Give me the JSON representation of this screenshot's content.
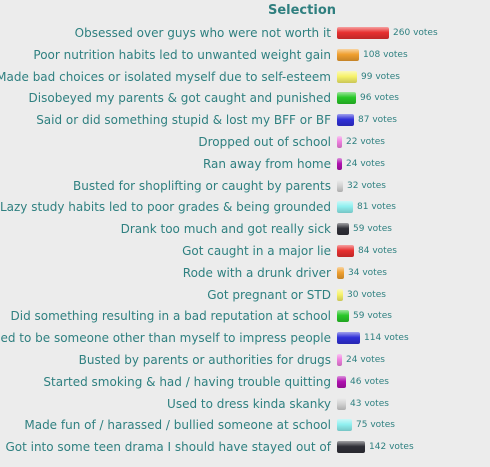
{
  "poll": {
    "header": "Selection",
    "votes_suffix": "votes",
    "rows": [
      {
        "label": "Obsessed over guys who were not worth it",
        "votes": 260,
        "color": "#e83030"
      },
      {
        "label": "Poor nutrition habits led to unwanted weight gain",
        "votes": 108,
        "color": "#f0a030"
      },
      {
        "label": "Made bad choices or isolated myself due to self-esteem",
        "votes": 99,
        "color": "#f6f26a"
      },
      {
        "label": "Disobeyed my parents & got caught and punished",
        "votes": 96,
        "color": "#28c828"
      },
      {
        "label": "Said or did something stupid & lost my BFF or BF",
        "votes": 87,
        "color": "#3030d8"
      },
      {
        "label": "Dropped out of school",
        "votes": 22,
        "color": "#f080e0"
      },
      {
        "label": "Ran away from home",
        "votes": 24,
        "color": "#b010b0"
      },
      {
        "label": "Busted for shoplifting or caught by parents",
        "votes": 32,
        "color": "#d4d4d4"
      },
      {
        "label": "Lazy study habits led to poor grades & being grounded",
        "votes": 81,
        "color": "#90f0f0"
      },
      {
        "label": "Drank too much and got really sick",
        "votes": 59,
        "color": "#303038"
      },
      {
        "label": "Got caught in a major lie",
        "votes": 84,
        "color": "#e83030"
      },
      {
        "label": "Rode with a drunk driver",
        "votes": 34,
        "color": "#f0a030"
      },
      {
        "label": "Got pregnant or STD",
        "votes": 30,
        "color": "#f6f26a"
      },
      {
        "label": "Did something resulting in a bad reputation at school",
        "votes": 59,
        "color": "#28c828"
      },
      {
        "label": "Tried to be someone other than myself to impress people",
        "votes": 114,
        "color": "#3030d8"
      },
      {
        "label": "Busted by parents or authorities for drugs",
        "votes": 24,
        "color": "#f080e0"
      },
      {
        "label": "Started smoking & had / having trouble quitting",
        "votes": 46,
        "color": "#b010b0"
      },
      {
        "label": "Used to dress kinda skanky",
        "votes": 43,
        "color": "#d4d4d4"
      },
      {
        "label": "Made fun of / harassed / bullied someone at school",
        "votes": 75,
        "color": "#90f0f0"
      },
      {
        "label": "Got into some teen drama I should have stayed out of",
        "votes": 142,
        "color": "#303038"
      }
    ]
  }
}
